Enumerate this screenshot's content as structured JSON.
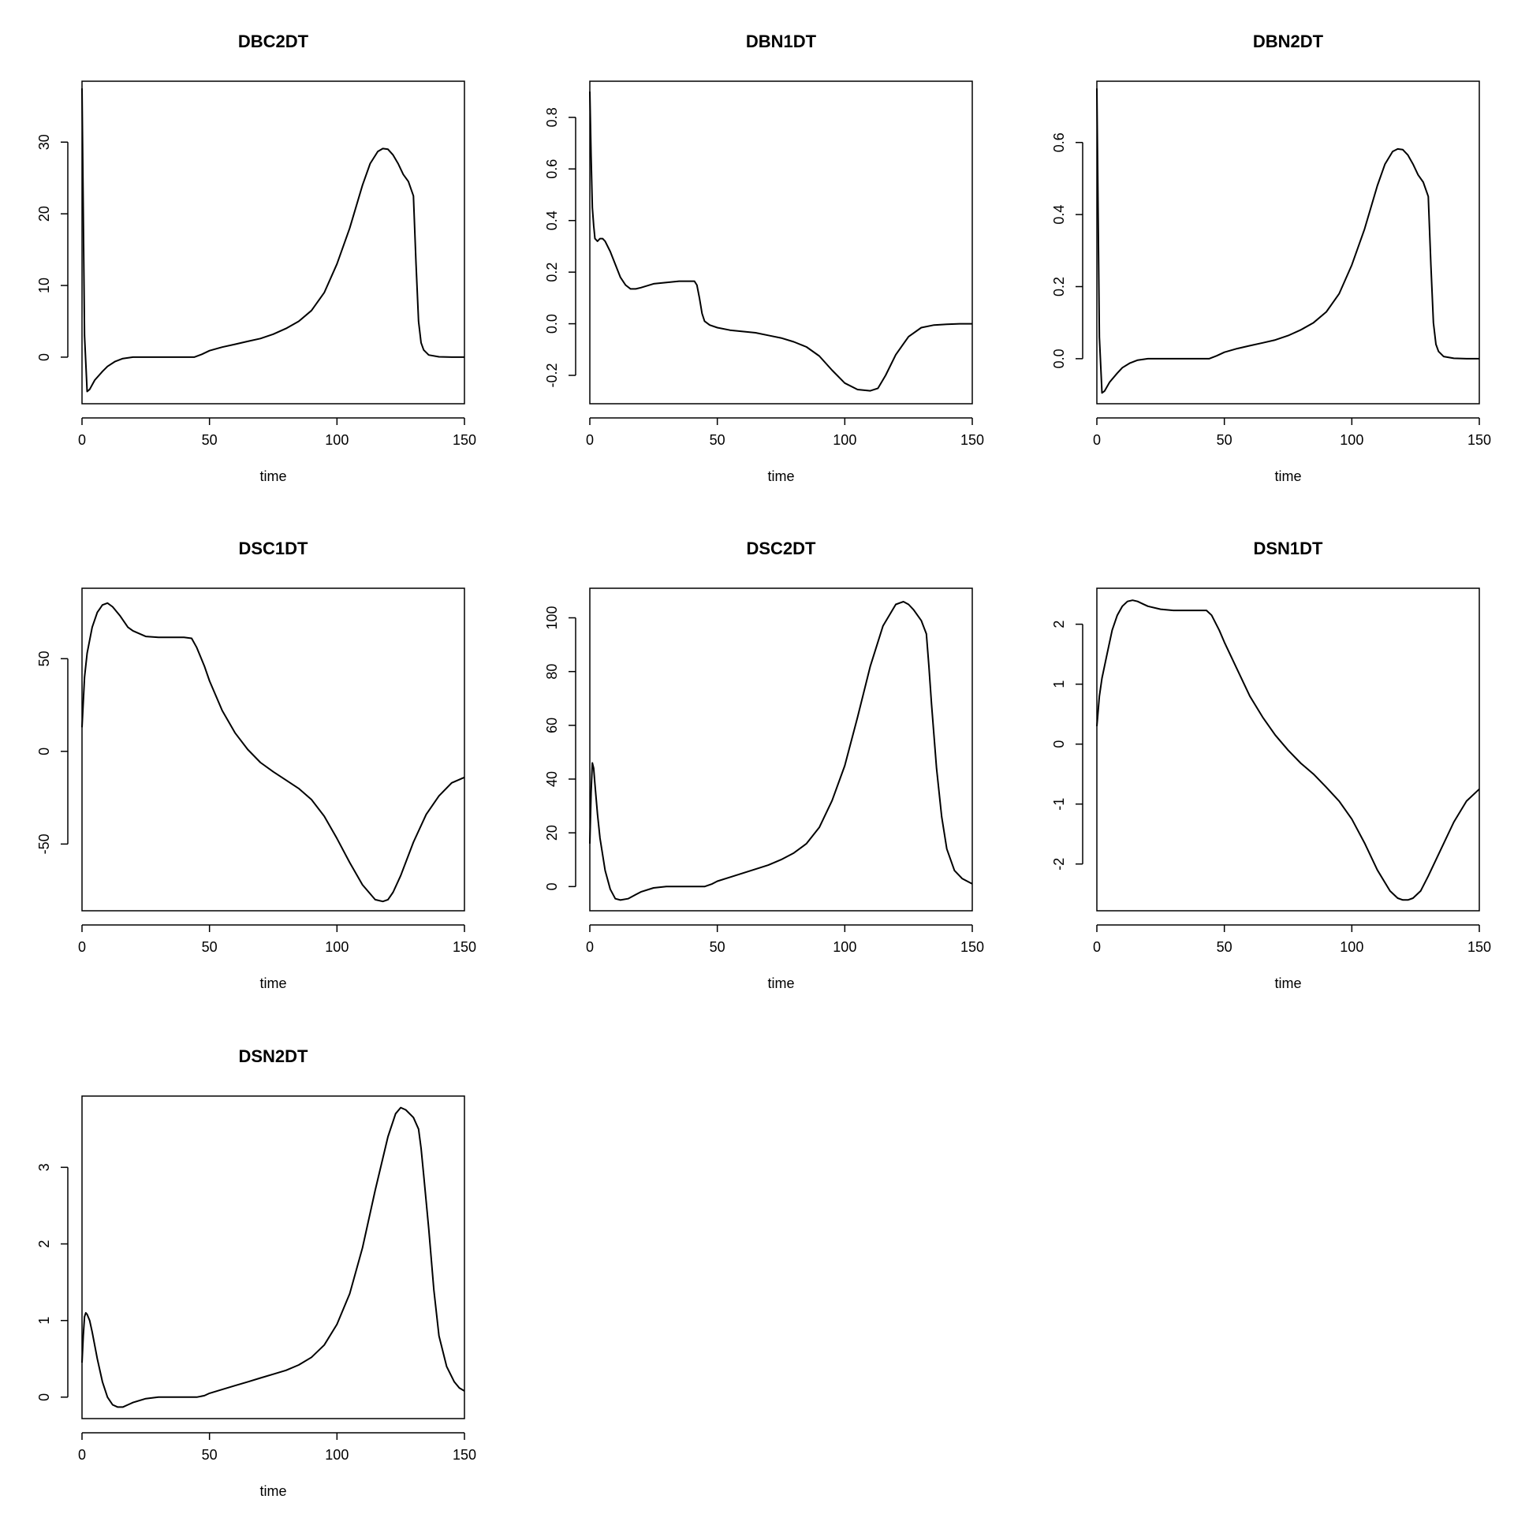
{
  "chart_data": [
    {
      "type": "line",
      "title": "DBC2DT",
      "xlabel": "time",
      "ylabel": "",
      "xlim": [
        0,
        150
      ],
      "ylim": [
        -6.5,
        38.5
      ],
      "xticks": [
        0,
        50,
        100,
        150
      ],
      "yticks": [
        0,
        10,
        20,
        30
      ],
      "x": [
        0,
        1,
        2,
        3,
        5,
        8,
        10,
        13,
        16,
        20,
        25,
        30,
        35,
        40,
        44,
        47,
        50,
        55,
        60,
        65,
        70,
        75,
        80,
        85,
        90,
        95,
        100,
        105,
        110,
        113,
        116,
        118,
        120,
        122,
        124,
        126,
        128,
        130,
        131,
        132,
        133,
        134,
        136,
        140,
        145,
        150
      ],
      "y": [
        37.5,
        3,
        -4.8,
        -4.5,
        -3.2,
        -2,
        -1.3,
        -0.6,
        -0.2,
        0,
        0,
        0,
        0,
        0,
        0,
        0.4,
        0.9,
        1.4,
        1.8,
        2.2,
        2.6,
        3.2,
        4,
        5,
        6.5,
        9,
        13,
        18,
        24,
        27,
        28.7,
        29.1,
        29,
        28.2,
        27,
        25.5,
        24.5,
        22.5,
        13,
        5,
        2,
        1,
        0.3,
        0.05,
        0,
        0
      ]
    },
    {
      "type": "line",
      "title": "DBN1DT",
      "xlabel": "time",
      "ylabel": "",
      "xlim": [
        0,
        150
      ],
      "ylim": [
        -0.31,
        0.94
      ],
      "xticks": [
        0,
        50,
        100,
        150
      ],
      "yticks": [
        -0.2,
        0.0,
        0.2,
        0.4,
        0.6,
        0.8
      ],
      "x": [
        0,
        0.5,
        1,
        1.5,
        2,
        3,
        4,
        5,
        6,
        8,
        10,
        12,
        14,
        16,
        18,
        20,
        25,
        30,
        35,
        40,
        41,
        42,
        43,
        44,
        45,
        47,
        50,
        55,
        60,
        65,
        70,
        75,
        80,
        85,
        90,
        95,
        100,
        105,
        110,
        113,
        116,
        120,
        125,
        130,
        135,
        140,
        145,
        150
      ],
      "y": [
        0.9,
        0.65,
        0.45,
        0.38,
        0.33,
        0.32,
        0.33,
        0.33,
        0.32,
        0.28,
        0.23,
        0.18,
        0.15,
        0.135,
        0.135,
        0.14,
        0.155,
        0.16,
        0.165,
        0.165,
        0.165,
        0.15,
        0.1,
        0.04,
        0.01,
        -0.005,
        -0.015,
        -0.025,
        -0.03,
        -0.035,
        -0.045,
        -0.055,
        -0.07,
        -0.09,
        -0.125,
        -0.18,
        -0.23,
        -0.255,
        -0.26,
        -0.25,
        -0.2,
        -0.12,
        -0.05,
        -0.015,
        -0.005,
        -0.002,
        0,
        0
      ]
    },
    {
      "type": "line",
      "title": "DBN2DT",
      "xlabel": "time",
      "ylabel": "",
      "xlim": [
        0,
        150
      ],
      "ylim": [
        -0.125,
        0.77
      ],
      "xticks": [
        0,
        50,
        100,
        150
      ],
      "yticks": [
        0.0,
        0.2,
        0.4,
        0.6
      ],
      "x": [
        0,
        1,
        2,
        3,
        5,
        8,
        10,
        13,
        16,
        20,
        25,
        30,
        35,
        40,
        44,
        47,
        50,
        55,
        60,
        65,
        70,
        75,
        80,
        85,
        90,
        95,
        100,
        105,
        110,
        113,
        116,
        118,
        120,
        122,
        124,
        126,
        128,
        130,
        131,
        132,
        133,
        134,
        136,
        140,
        145,
        150
      ],
      "y": [
        0.75,
        0.06,
        -0.095,
        -0.09,
        -0.065,
        -0.04,
        -0.025,
        -0.012,
        -0.004,
        0,
        0,
        0,
        0,
        0,
        0,
        0.008,
        0.018,
        0.028,
        0.036,
        0.044,
        0.052,
        0.064,
        0.08,
        0.1,
        0.13,
        0.18,
        0.26,
        0.36,
        0.48,
        0.54,
        0.575,
        0.582,
        0.58,
        0.565,
        0.54,
        0.51,
        0.49,
        0.45,
        0.26,
        0.1,
        0.04,
        0.02,
        0.006,
        0.001,
        0,
        0
      ]
    },
    {
      "type": "line",
      "title": "DSC1DT",
      "xlabel": "time",
      "ylabel": "",
      "xlim": [
        0,
        150
      ],
      "ylim": [
        -86,
        88
      ],
      "xticks": [
        0,
        50,
        100,
        150
      ],
      "yticks": [
        -50,
        0,
        50
      ],
      "x": [
        0,
        1,
        2,
        4,
        6,
        8,
        10,
        12,
        15,
        18,
        20,
        25,
        30,
        35,
        40,
        43,
        45,
        48,
        50,
        55,
        60,
        65,
        70,
        75,
        80,
        85,
        90,
        95,
        100,
        105,
        110,
        115,
        118,
        120,
        122,
        125,
        130,
        135,
        140,
        145,
        150
      ],
      "y": [
        13,
        40,
        53,
        67,
        75,
        79,
        80,
        78,
        73,
        67,
        65,
        62,
        61.5,
        61.5,
        61.5,
        61,
        56,
        46,
        38,
        22,
        10,
        1,
        -6,
        -11,
        -15.5,
        -20,
        -26,
        -35,
        -47,
        -60,
        -72,
        -80,
        -81,
        -80,
        -76,
        -67,
        -49,
        -34,
        -24,
        -17,
        -14
      ]
    },
    {
      "type": "line",
      "title": "DSC2DT",
      "xlabel": "time",
      "ylabel": "",
      "xlim": [
        0,
        150
      ],
      "ylim": [
        -9,
        111
      ],
      "xticks": [
        0,
        50,
        100,
        150
      ],
      "yticks": [
        0,
        20,
        40,
        60,
        80,
        100
      ],
      "x": [
        0,
        0.5,
        1,
        1.5,
        2,
        3,
        4,
        6,
        8,
        10,
        12,
        15,
        18,
        20,
        25,
        30,
        35,
        40,
        45,
        48,
        50,
        55,
        60,
        65,
        70,
        75,
        80,
        85,
        90,
        95,
        100,
        105,
        110,
        115,
        120,
        123,
        125,
        127,
        130,
        132,
        133,
        134,
        136,
        138,
        140,
        143,
        146,
        148,
        150
      ],
      "y": [
        16,
        35,
        46,
        44,
        38,
        27,
        18,
        6,
        -1,
        -4.5,
        -5,
        -4.5,
        -3,
        -2,
        -0.5,
        0,
        0,
        0,
        0,
        1,
        2,
        3.5,
        5,
        6.5,
        8,
        10,
        12.5,
        16,
        22,
        32,
        45,
        63,
        82,
        97,
        105,
        106,
        105,
        103,
        99,
        94,
        82,
        68,
        44,
        26,
        14,
        6,
        3,
        2,
        1
      ]
    },
    {
      "type": "line",
      "title": "DSN1DT",
      "xlabel": "time",
      "ylabel": "",
      "xlim": [
        0,
        150
      ],
      "ylim": [
        -2.78,
        2.6
      ],
      "xticks": [
        0,
        50,
        100,
        150
      ],
      "yticks": [
        -2,
        -1,
        0,
        1,
        2
      ],
      "x": [
        0,
        1,
        2,
        4,
        6,
        8,
        10,
        12,
        14,
        16,
        18,
        20,
        25,
        30,
        35,
        40,
        43,
        45,
        48,
        50,
        55,
        60,
        65,
        70,
        75,
        80,
        85,
        90,
        95,
        100,
        105,
        110,
        115,
        118,
        120,
        122,
        124,
        127,
        130,
        135,
        140,
        145,
        150
      ],
      "y": [
        0.3,
        0.8,
        1.1,
        1.5,
        1.9,
        2.15,
        2.3,
        2.38,
        2.4,
        2.38,
        2.34,
        2.3,
        2.25,
        2.23,
        2.23,
        2.23,
        2.23,
        2.15,
        1.9,
        1.7,
        1.25,
        0.8,
        0.45,
        0.15,
        -0.1,
        -0.32,
        -0.5,
        -0.72,
        -0.95,
        -1.25,
        -1.65,
        -2.1,
        -2.45,
        -2.57,
        -2.6,
        -2.6,
        -2.57,
        -2.45,
        -2.2,
        -1.75,
        -1.3,
        -0.95,
        -0.75
      ]
    },
    {
      "type": "line",
      "title": "DSN2DT",
      "xlabel": "time",
      "ylabel": "",
      "xlim": [
        0,
        150
      ],
      "ylim": [
        -0.28,
        3.93
      ],
      "xticks": [
        0,
        50,
        100,
        150
      ],
      "yticks": [
        0,
        1,
        2,
        3
      ],
      "x": [
        0,
        0.5,
        1,
        1.5,
        2,
        3,
        4,
        6,
        8,
        10,
        12,
        14,
        16,
        18,
        20,
        25,
        30,
        35,
        40,
        45,
        48,
        50,
        55,
        60,
        65,
        70,
        75,
        80,
        85,
        90,
        95,
        100,
        105,
        110,
        115,
        120,
        123,
        125,
        127,
        130,
        132,
        133,
        134,
        136,
        138,
        140,
        143,
        146,
        148,
        150
      ],
      "y": [
        0.45,
        0.8,
        1.05,
        1.1,
        1.08,
        1.0,
        0.85,
        0.5,
        0.2,
        0.0,
        -0.1,
        -0.13,
        -0.13,
        -0.1,
        -0.07,
        -0.02,
        0,
        0,
        0,
        0,
        0.02,
        0.05,
        0.1,
        0.15,
        0.2,
        0.25,
        0.3,
        0.35,
        0.42,
        0.52,
        0.68,
        0.95,
        1.35,
        1.95,
        2.7,
        3.4,
        3.7,
        3.78,
        3.75,
        3.65,
        3.5,
        3.25,
        2.9,
        2.2,
        1.4,
        0.8,
        0.4,
        0.2,
        0.12,
        0.08
      ]
    }
  ]
}
